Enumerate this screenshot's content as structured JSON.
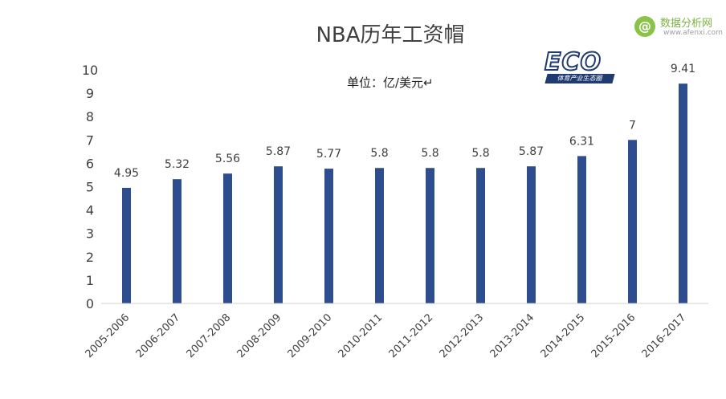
{
  "chart_data": {
    "type": "bar",
    "title": "NBA历年工资帽",
    "unit_note": "单位：亿/美元↵",
    "categories": [
      "2005-2006",
      "2006-2007",
      "2007-2008",
      "2008-2009",
      "2009-2010",
      "2010-2011",
      "2011-2012",
      "2012-2013",
      "2013-2014",
      "2014-2015",
      "2015-2016",
      "2016-2017"
    ],
    "values": [
      4.95,
      5.32,
      5.56,
      5.87,
      5.77,
      5.8,
      5.8,
      5.8,
      5.87,
      6.31,
      7,
      9.41
    ],
    "data_labels": [
      "4.95",
      "5.32",
      "5.56",
      "5.87",
      "5.77",
      "5.8",
      "5.8",
      "5.8",
      "5.87",
      "6.31",
      "7",
      "9.41"
    ],
    "yticks": [
      "0",
      "1",
      "2",
      "3",
      "4",
      "5",
      "6",
      "7",
      "8",
      "9",
      "10"
    ],
    "ylim": [
      0,
      10
    ],
    "xlabel": "",
    "ylabel": "",
    "grid": false,
    "legend": "none",
    "bar_color": "#2e4d8f"
  },
  "watermark": {
    "symbol": "@",
    "name": "数据分析网",
    "url": "www.afenxi.com",
    "color": "#8bc34a"
  },
  "logo": {
    "word": "ECO",
    "subtitle": "体育产业生态圈",
    "color": "#1f3b70"
  }
}
